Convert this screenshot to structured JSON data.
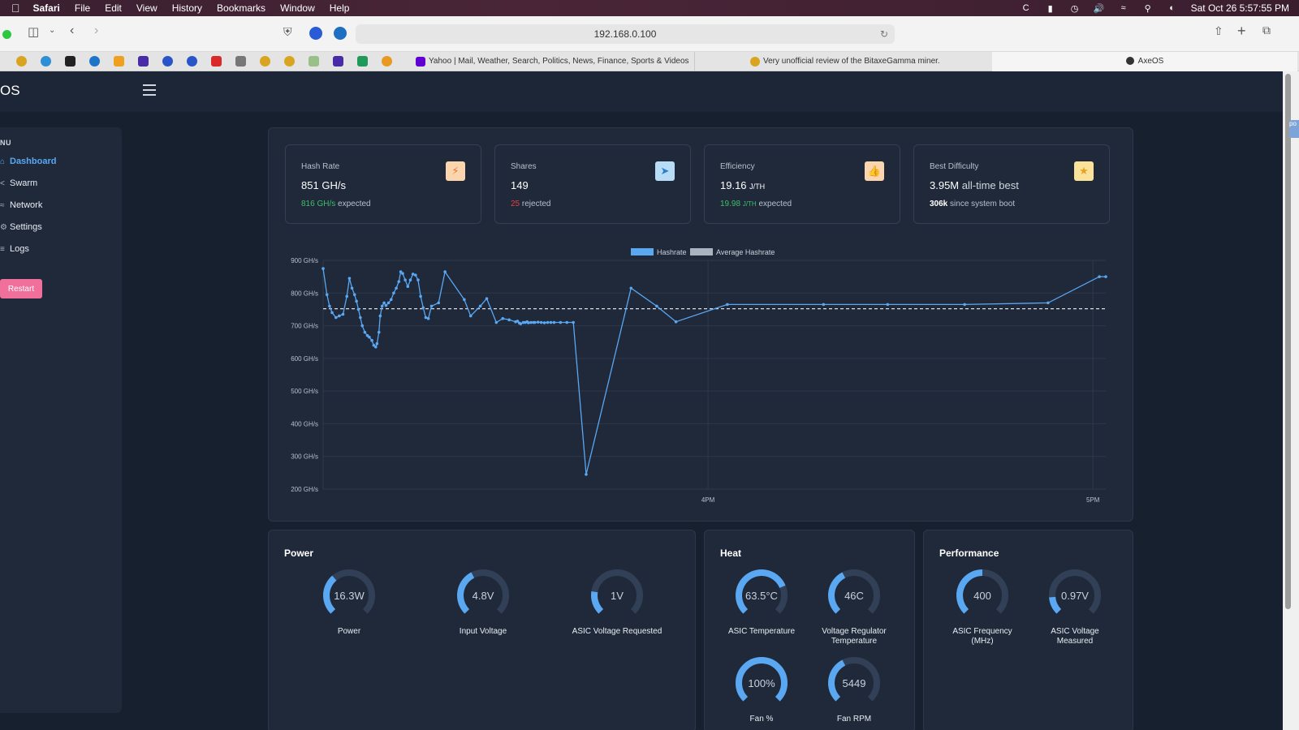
{
  "menubar": {
    "app": "Safari",
    "items": [
      "File",
      "Edit",
      "View",
      "History",
      "Bookmarks",
      "Window",
      "Help"
    ],
    "clock": "Sat Oct 26  5:57:55 PM"
  },
  "browser": {
    "url": "192.168.0.100",
    "tabs": [
      {
        "title": "Yahoo | Mail, Weather, Search, Politics, News, Finance, Sports & Videos"
      },
      {
        "title": "Very unofficial review of the BitaxeGamma miner."
      },
      {
        "title": "AxeOS"
      }
    ]
  },
  "app": {
    "logo": "OS"
  },
  "sidebar": {
    "menu_title": "NU",
    "items": [
      {
        "label": "Dashboard",
        "icon": "home-icon",
        "active": true
      },
      {
        "label": "Swarm",
        "icon": "share-icon"
      },
      {
        "label": "Network",
        "icon": "wifi-icon"
      },
      {
        "label": "Settings",
        "icon": "gear-icon"
      },
      {
        "label": "Logs",
        "icon": "list-icon"
      }
    ],
    "restart_label": "Restart"
  },
  "stats": {
    "hashrate": {
      "label": "Hash Rate",
      "value": "851",
      "unit": "GH/s",
      "expected": "816 GH/s",
      "expected_text": "expected",
      "icon": "bolt-icon"
    },
    "shares": {
      "label": "Shares",
      "value": "149",
      "rejected": "25",
      "rejected_text": "rejected",
      "icon": "send-icon"
    },
    "efficiency": {
      "label": "Efficiency",
      "value": "19.16",
      "unit": "J/TH",
      "expected": "19.98",
      "expected_unit": "J/TH",
      "expected_text": "expected",
      "icon": "thumbs-up-icon"
    },
    "best_difficulty": {
      "label": "Best Difficulty",
      "value": "3.95M",
      "value_suffix": "all-time best",
      "since_value": "306k",
      "since_text": "since system boot",
      "icon": "star-icon"
    }
  },
  "chart_data": {
    "type": "line",
    "legend": [
      {
        "name": "Hashrate",
        "color": "#5aa7f2"
      },
      {
        "name": "Average Hashrate",
        "color": "#a9b3bf"
      }
    ],
    "legend_position": "top-center",
    "y_ticks": [
      "900 GH/s",
      "800 GH/s",
      "700 GH/s",
      "600 GH/s",
      "500 GH/s",
      "400 GH/s",
      "300 GH/s",
      "200 GH/s"
    ],
    "ylim": [
      200,
      900
    ],
    "x_ticks": [
      {
        "label": "4PM",
        "minute": 60
      },
      {
        "label": "5PM",
        "minute": 120
      }
    ],
    "xlim": [
      0,
      122
    ],
    "average": 752,
    "series": [
      {
        "name": "Hashrate",
        "points": [
          [
            0.0,
            875
          ],
          [
            0.6,
            795
          ],
          [
            1.0,
            760
          ],
          [
            1.4,
            740
          ],
          [
            2.0,
            725
          ],
          [
            2.5,
            730
          ],
          [
            3.1,
            735
          ],
          [
            3.7,
            790
          ],
          [
            4.1,
            845
          ],
          [
            4.5,
            815
          ],
          [
            4.9,
            795
          ],
          [
            5.2,
            775
          ],
          [
            5.5,
            750
          ],
          [
            5.8,
            725
          ],
          [
            6.1,
            700
          ],
          [
            6.5,
            680
          ],
          [
            6.9,
            670
          ],
          [
            7.2,
            665
          ],
          [
            7.6,
            655
          ],
          [
            7.9,
            640
          ],
          [
            8.2,
            635
          ],
          [
            8.4,
            645
          ],
          [
            8.7,
            680
          ],
          [
            8.9,
            730
          ],
          [
            9.2,
            760
          ],
          [
            9.5,
            770
          ],
          [
            9.8,
            762
          ],
          [
            10.2,
            770
          ],
          [
            10.6,
            780
          ],
          [
            11.0,
            800
          ],
          [
            11.4,
            815
          ],
          [
            11.8,
            835
          ],
          [
            12.1,
            865
          ],
          [
            12.4,
            860
          ],
          [
            12.8,
            840
          ],
          [
            13.2,
            820
          ],
          [
            13.6,
            840
          ],
          [
            14.0,
            858
          ],
          [
            14.4,
            855
          ],
          [
            14.8,
            840
          ],
          [
            15.2,
            790
          ],
          [
            15.6,
            755
          ],
          [
            16.0,
            725
          ],
          [
            16.4,
            722
          ],
          [
            16.9,
            760
          ],
          [
            18.0,
            770
          ],
          [
            19.0,
            865
          ],
          [
            22.0,
            780
          ],
          [
            23.0,
            730
          ],
          [
            24.5,
            760
          ],
          [
            25.5,
            783
          ],
          [
            27.0,
            710
          ],
          [
            28.0,
            722
          ],
          [
            29.0,
            718
          ],
          [
            30.0,
            712
          ],
          [
            30.6,
            708
          ],
          [
            31.2,
            710
          ],
          [
            31.8,
            712
          ],
          [
            32.4,
            710
          ],
          [
            33.0,
            710
          ],
          [
            34.0,
            710
          ],
          [
            35.0,
            710
          ],
          [
            36.0,
            710
          ],
          [
            37.0,
            710
          ],
          [
            38.0,
            710
          ],
          [
            30.8,
            706
          ],
          [
            31.5,
            710
          ],
          [
            32.0,
            709
          ],
          [
            32.8,
            710
          ],
          [
            33.5,
            711
          ],
          [
            34.5,
            709
          ],
          [
            35.5,
            710
          ],
          [
            39.0,
            710
          ],
          [
            30.3,
            714
          ],
          [
            41.0,
            245
          ],
          [
            48.0,
            815
          ],
          [
            55.0,
            712
          ],
          [
            52.0,
            760
          ],
          [
            63.0,
            765
          ],
          [
            78.0,
            765
          ],
          [
            88.0,
            765
          ],
          [
            100.0,
            765
          ],
          [
            113.0,
            770
          ],
          [
            121.0,
            850
          ],
          [
            122.0,
            850
          ]
        ]
      }
    ]
  },
  "power": {
    "title": "Power",
    "gauges": [
      {
        "value": "16.3W",
        "label": "Power",
        "fraction": 0.35
      },
      {
        "value": "4.8V",
        "label": "Input Voltage",
        "fraction": 0.4
      },
      {
        "value": "1V",
        "label": "ASIC Voltage Requested",
        "fraction": 0.2
      }
    ]
  },
  "heat": {
    "title": "Heat",
    "gauges": [
      {
        "value": "63.5°C",
        "label": "ASIC Temperature",
        "fraction": 0.75
      },
      {
        "value": "46C",
        "label": "Voltage Regulator Temperature",
        "fraction": 0.4
      },
      {
        "value": "100%",
        "label": "Fan %",
        "fraction": 1.0
      },
      {
        "value": "5449",
        "label": "Fan RPM",
        "fraction": 0.4
      }
    ]
  },
  "performance": {
    "title": "Performance",
    "gauges": [
      {
        "value": "400",
        "label": "ASIC Frequency (MHz)",
        "fraction": 0.5
      },
      {
        "value": "0.97V",
        "label": "ASIC Voltage Measured",
        "fraction": 0.15
      }
    ]
  },
  "scrollbar": {
    "edge_text": "po"
  },
  "colors": {
    "accent": "#5aa7f2",
    "background": "#17202e",
    "card": "#1f2939",
    "restart": "#f06f9b",
    "green": "#3fbf6a",
    "red": "#e0443e",
    "gauge_track": "#324057"
  }
}
